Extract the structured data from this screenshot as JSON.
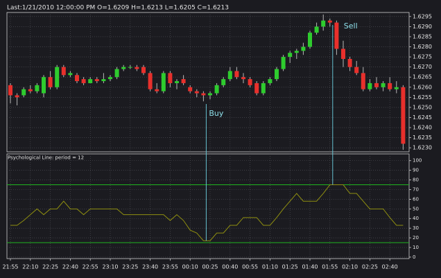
{
  "chart_data": [
    {
      "type": "candlestick",
      "title": "Last:1/21/2010 12:00:00 PM O=1.6209 H=1.6213 L=1.6205 C=1.6213",
      "categories": [
        "21:55",
        null,
        null,
        "22:10",
        null,
        null,
        "22:25",
        null,
        null,
        "22:40",
        null,
        null,
        "22:55",
        null,
        null,
        "23:10",
        null,
        null,
        "23:25",
        null,
        null,
        "23:40",
        null,
        null,
        "23:55",
        null,
        null,
        "00:10",
        null,
        null,
        "00:25",
        null,
        null,
        "00:40",
        null,
        null,
        "00:55",
        null,
        null,
        "01:10",
        null,
        null,
        "01:25",
        null,
        null,
        "01:40",
        null,
        null,
        "01:55",
        null,
        null,
        "02:10",
        null,
        null,
        "02:25",
        null,
        null,
        "02:40",
        null,
        null
      ],
      "open": [
        1.6261,
        1.6256,
        1.6256,
        1.6259,
        1.6258,
        1.6257,
        1.6265,
        1.626,
        1.627,
        1.6266,
        1.6266,
        1.6264,
        1.6262,
        1.6264,
        1.6263,
        1.6264,
        1.6265,
        1.6269,
        1.627,
        1.627,
        1.627,
        1.6267,
        1.6259,
        1.6258,
        1.6267,
        1.6262,
        1.6264,
        1.626,
        1.6258,
        1.6257,
        1.6256,
        1.6257,
        1.6261,
        1.6264,
        1.6268,
        1.6265,
        1.6264,
        1.6262,
        1.6257,
        1.6262,
        1.6264,
        1.6269,
        1.6275,
        1.6277,
        1.6278,
        1.628,
        1.6287,
        1.629,
        1.6293,
        1.6292,
        1.6279,
        1.6274,
        1.627,
        1.6267,
        1.6259,
        1.6262,
        1.626,
        1.6262,
        1.6259,
        1.626
      ],
      "high": [
        1.6262,
        1.6257,
        1.626,
        1.6261,
        1.6262,
        1.6266,
        1.6268,
        1.6271,
        1.6271,
        1.6268,
        1.6267,
        1.6265,
        1.6265,
        1.6265,
        1.6267,
        1.6266,
        1.627,
        1.6271,
        1.6271,
        1.6271,
        1.6271,
        1.6268,
        1.6262,
        1.6268,
        1.6268,
        1.6264,
        1.6266,
        1.6261,
        1.6259,
        1.6258,
        1.6258,
        1.6262,
        1.6265,
        1.627,
        1.627,
        1.6267,
        1.6265,
        1.6263,
        1.6263,
        1.6265,
        1.627,
        1.6276,
        1.6278,
        1.6279,
        1.6282,
        1.6288,
        1.6292,
        1.6296,
        1.6294,
        1.6293,
        1.6283,
        1.6275,
        1.6273,
        1.627,
        1.6264,
        1.6265,
        1.6263,
        1.6265,
        1.6263,
        1.6261
      ],
      "low": [
        1.6252,
        1.6251,
        1.6255,
        1.6257,
        1.6257,
        1.6255,
        1.6259,
        1.6259,
        1.6265,
        1.6265,
        1.6262,
        1.6261,
        1.6262,
        1.6262,
        1.6262,
        1.6263,
        1.6264,
        1.6268,
        1.6269,
        1.6268,
        1.6266,
        1.6258,
        1.6257,
        1.6257,
        1.626,
        1.6259,
        1.6261,
        1.6257,
        1.6255,
        1.6253,
        1.6254,
        1.6256,
        1.626,
        1.6263,
        1.6264,
        1.6262,
        1.626,
        1.6256,
        1.6256,
        1.6261,
        1.6263,
        1.6268,
        1.6272,
        1.6274,
        1.6276,
        1.6279,
        1.6286,
        1.6288,
        1.629,
        1.6276,
        1.627,
        1.6268,
        1.6266,
        1.6258,
        1.6258,
        1.6259,
        1.6258,
        1.6258,
        1.6257,
        1.6229
      ],
      "close": [
        1.6256,
        1.6255,
        1.6259,
        1.6258,
        1.6261,
        1.6265,
        1.626,
        1.627,
        1.6266,
        1.6267,
        1.6263,
        1.6262,
        1.6264,
        1.6263,
        1.6264,
        1.6265,
        1.6269,
        1.627,
        1.627,
        1.6269,
        1.6267,
        1.6259,
        1.6258,
        1.6267,
        1.6262,
        1.6263,
        1.6262,
        1.6258,
        1.6257,
        1.6256,
        1.6257,
        1.6261,
        1.6264,
        1.6268,
        1.6265,
        1.6264,
        1.6261,
        1.6257,
        1.6262,
        1.6264,
        1.6269,
        1.6275,
        1.6277,
        1.6278,
        1.628,
        1.6287,
        1.629,
        1.6293,
        1.6292,
        1.6279,
        1.6274,
        1.627,
        1.6267,
        1.6259,
        1.6262,
        1.626,
        1.6262,
        1.6259,
        1.626,
        1.6232
      ],
      "up_color": "#2ecc2e",
      "down_color": "#e8302c",
      "ylim": [
        1.6228,
        1.6297
      ],
      "yticks": [
        1.6295,
        {
          "value": 1.629,
          "label": "1.6290"
        },
        1.6285,
        {
          "value": 1.628,
          "label": "1.6280"
        },
        1.6275,
        {
          "value": 1.627,
          "label": "1.6270"
        },
        1.6265,
        {
          "value": 1.626,
          "label": "1.6260"
        },
        1.6255,
        {
          "value": 1.625,
          "label": "1.6250"
        },
        1.6245,
        {
          "value": 1.624,
          "label": "1.6240"
        },
        1.6235,
        {
          "value": 1.623,
          "label": "1.6230"
        }
      ],
      "grid": true,
      "annotations": [
        {
          "text": "Buy"
        },
        {
          "text": "Sell"
        }
      ]
    },
    {
      "type": "line",
      "title": "Psychological Line: period = 12",
      "values": [
        33,
        33,
        38,
        44,
        50,
        44,
        50,
        50,
        58,
        50,
        50,
        44,
        50,
        50,
        50,
        50,
        50,
        44,
        44,
        44,
        44,
        44,
        44,
        44,
        38,
        44,
        38,
        28,
        25,
        17,
        17,
        25,
        25,
        33,
        33,
        41,
        41,
        41,
        33,
        33,
        41,
        50,
        58,
        66,
        58,
        58,
        58,
        66,
        75,
        75,
        75,
        66,
        66,
        58,
        50,
        50,
        50,
        41,
        33,
        33
      ],
      "color": "#8f8f10",
      "levels": [
        75,
        15
      ],
      "level_color": "#1fb41f",
      "ylim": [
        -1.5,
        107
      ],
      "yticks": [
        0,
        10,
        20,
        30,
        40,
        50,
        60,
        70,
        80,
        90,
        100
      ],
      "grid": true
    }
  ]
}
